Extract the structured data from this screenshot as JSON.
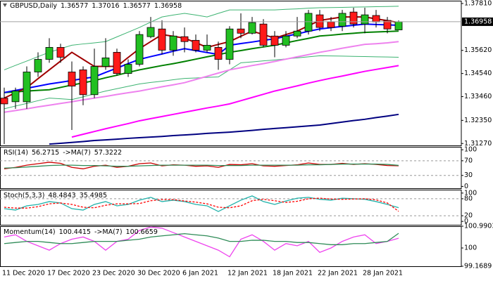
{
  "chart_data": [
    {
      "type": "candlestick",
      "title": "GBPUSD,Daily",
      "categories": [
        "11 Dec 2020",
        null,
        null,
        null,
        "17 Dec 2020",
        null,
        null,
        null,
        "23 Dec 2020",
        null,
        null,
        null,
        "30 Dec 2020",
        null,
        null,
        null,
        "6 Jan 2021",
        null,
        null,
        null,
        "12 Jan 2021",
        null,
        null,
        null,
        "18 Jan 2021",
        null,
        null,
        null,
        "22 Jan 2021",
        null,
        null,
        null,
        "28 Jan 2021",
        null,
        null,
        null
      ],
      "open": [
        1.3339,
        1.3322,
        1.3322,
        1.3461,
        1.352,
        1.3576,
        1.3461,
        1.3471,
        1.3355,
        1.3487,
        1.3553,
        1.3454,
        1.3497,
        1.3626,
        1.3662,
        1.3563,
        1.3626,
        1.3609,
        1.3563,
        1.3576,
        1.352,
        1.3662,
        1.3642,
        1.3685,
        1.3629,
        1.3586,
        1.3629,
        1.3652,
        1.3728,
        1.3695,
        1.3675,
        1.3741,
        1.3685,
        1.3725,
        1.3702,
        1.36577
      ],
      "high": [
        1.3388,
        1.3388,
        1.3487,
        1.3553,
        1.3619,
        1.3593,
        1.351,
        1.3487,
        1.357,
        1.3619,
        1.357,
        1.352,
        1.3652,
        1.3718,
        1.3702,
        1.3652,
        1.3669,
        1.3636,
        1.3636,
        1.3603,
        1.3675,
        1.3735,
        1.3718,
        1.3708,
        1.3652,
        1.3652,
        1.3718,
        1.3751,
        1.3751,
        1.3718,
        1.3751,
        1.3761,
        1.3761,
        1.3751,
        1.3718,
        1.37016
      ],
      "low": [
        1.3124,
        1.3289,
        1.3289,
        1.3438,
        1.3504,
        1.3504,
        1.319,
        1.3306,
        1.3339,
        1.3471,
        1.3444,
        1.3438,
        1.3487,
        1.3619,
        1.3543,
        1.3537,
        1.3553,
        1.3553,
        1.3553,
        1.3471,
        1.3497,
        1.3619,
        1.3636,
        1.3576,
        1.353,
        1.3576,
        1.3619,
        1.3636,
        1.3652,
        1.3652,
        1.3652,
        1.3669,
        1.3642,
        1.3669,
        1.3642,
        1.36577
      ],
      "close": [
        1.3312,
        1.3372,
        1.3461,
        1.352,
        1.3576,
        1.353,
        1.3395,
        1.3355,
        1.3487,
        1.3527,
        1.3454,
        1.3497,
        1.3636,
        1.3669,
        1.3563,
        1.3629,
        1.3603,
        1.3563,
        1.3586,
        1.352,
        1.3662,
        1.3642,
        1.3692,
        1.3586,
        1.3586,
        1.3629,
        1.3652,
        1.3735,
        1.3669,
        1.3669,
        1.3735,
        1.3685,
        1.3728,
        1.3695,
        1.3662,
        1.36958
      ],
      "up_color": "#22c022",
      "down_color": "#ff1a1a",
      "overlays": [
        {
          "color": "#3cb371",
          "width": 1,
          "values": [
            1.3471,
            1.3492,
            1.3512,
            1.3533,
            1.3553,
            1.357,
            1.3586,
            1.3592,
            1.3597,
            1.3603,
            1.3625,
            1.3647,
            1.3669,
            1.3694,
            1.3718,
            1.3727,
            1.3735,
            1.3727,
            1.3718,
            1.3735,
            1.3751,
            1.3751,
            1.3751,
            1.3751,
            1.3751,
            1.3754,
            1.3756,
            1.3759,
            1.3761,
            1.3762,
            1.3763,
            1.3764,
            1.3765,
            1.3766,
            1.3767,
            1.3768
          ]
        },
        {
          "color": "#3cb371",
          "width": 1,
          "values": [
            1.3289,
            1.3302,
            1.3314,
            1.3327,
            1.3339,
            1.3336,
            1.3332,
            1.3345,
            1.3359,
            1.3372,
            1.3383,
            1.3394,
            1.3405,
            1.3412,
            1.3418,
            1.3425,
            1.3431,
            1.3433,
            1.3436,
            1.3438,
            1.3471,
            1.3504,
            1.3508,
            1.3513,
            1.3517,
            1.3522,
            1.3527,
            1.3532,
            1.3537,
            1.3536,
            1.3535,
            1.3534,
            1.3533,
            1.3532,
            1.3531,
            1.353
          ]
        },
        {
          "color": "#000080",
          "width": 2,
          "values": [
            null,
            null,
            null,
            null,
            1.3124,
            1.3128,
            1.3132,
            1.3136,
            1.3141,
            1.3144,
            1.3147,
            1.3151,
            1.3154,
            1.3157,
            1.316,
            1.3164,
            1.3167,
            1.317,
            1.3174,
            1.3177,
            1.318,
            1.3184,
            1.3188,
            1.3193,
            1.3197,
            1.3201,
            1.3205,
            1.3209,
            1.3213,
            1.322,
            1.3227,
            1.3234,
            1.324,
            1.3248,
            1.3255,
            1.3263
          ]
        },
        {
          "color": "#ff00ff",
          "width": 2,
          "values": [
            null,
            null,
            null,
            null,
            null,
            null,
            1.3157,
            1.317,
            1.3183,
            1.3196,
            1.3208,
            1.322,
            1.3233,
            1.3243,
            1.3253,
            1.3263,
            1.3273,
            1.3283,
            1.3293,
            1.3302,
            1.3312,
            1.3327,
            1.3342,
            1.3357,
            1.3372,
            1.3384,
            1.3396,
            1.3409,
            1.3421,
            1.3432,
            1.3442,
            1.3453,
            1.3464,
            1.3473,
            1.3482,
            1.3491
          ]
        },
        {
          "color": "#ee82ee",
          "width": 2,
          "values": [
            1.3273,
            1.3281,
            1.3289,
            1.3298,
            1.3306,
            1.3314,
            1.3322,
            1.3331,
            1.3339,
            1.3347,
            1.3356,
            1.3364,
            1.3372,
            1.3382,
            1.3392,
            1.3401,
            1.3411,
            1.3426,
            1.3441,
            1.3456,
            1.3471,
            1.3481,
            1.3491,
            1.35,
            1.351,
            1.3521,
            1.3532,
            1.3542,
            1.3553,
            1.3562,
            1.3572,
            1.3581,
            1.359,
            1.3593,
            1.3597,
            1.3603
          ]
        },
        {
          "color": "#008000",
          "width": 2,
          "values": [
            1.3365,
            1.3368,
            1.3372,
            1.3375,
            1.3378,
            1.3389,
            1.34,
            1.341,
            1.3421,
            1.3434,
            1.3446,
            1.3459,
            1.3471,
            1.3481,
            1.3491,
            1.35,
            1.351,
            1.3521,
            1.3532,
            1.3542,
            1.3553,
            1.3561,
            1.357,
            1.3578,
            1.3586,
            1.3597,
            1.3608,
            1.3618,
            1.3629,
            1.3633,
            1.3638,
            1.3642,
            1.3646,
            1.3648,
            1.365,
            1.3652
          ]
        },
        {
          "color": "#0000ff",
          "width": 2,
          "values": [
            1.3365,
            1.3375,
            1.3385,
            1.3395,
            1.3405,
            1.3413,
            1.3421,
            1.343,
            1.3438,
            1.3459,
            1.3479,
            1.35,
            1.352,
            1.3533,
            1.3545,
            1.3558,
            1.357,
            1.3561,
            1.3552,
            1.3543,
            1.3586,
            1.3594,
            1.3601,
            1.3609,
            1.3616,
            1.3628,
            1.3639,
            1.3651,
            1.3662,
            1.3668,
            1.3674,
            1.3679,
            1.3685,
            1.3683,
            1.3681,
            1.3679
          ]
        },
        {
          "color": "#a00000",
          "width": 2,
          "values": [
            1.3339,
            1.3364,
            1.3388,
            1.343,
            1.3471,
            1.3512,
            1.3553,
            1.352,
            1.3487,
            1.3487,
            1.3487,
            1.3529,
            1.357,
            1.3603,
            1.3636,
            1.3628,
            1.3619,
            1.3598,
            1.3576,
            1.359,
            1.3603,
            1.3628,
            1.3652,
            1.3636,
            1.3619,
            1.3636,
            1.3652,
            1.3677,
            1.3702,
            1.371,
            1.3718,
            1.3718,
            1.3718,
            1.3709,
            1.3701,
            1.3692
          ]
        }
      ],
      "ylim": [
        1.3118,
        1.3794
      ],
      "yticks": [
        {
          "value": 1.3781,
          "label": "1.37810"
        },
        {
          "value": 1.3562,
          "label": "1.35620"
        },
        {
          "value": 1.3454,
          "label": "1.34540"
        },
        {
          "value": 1.3346,
          "label": "1.33460"
        },
        {
          "value": 1.3235,
          "label": "1.32350"
        },
        {
          "value": 1.3127,
          "label": "1.31270"
        }
      ]
    },
    {
      "type": "line",
      "series": [
        {
          "name": "RSI(14)",
          "color": "#cc0000",
          "values": [
            48,
            52,
            58,
            62,
            66,
            63,
            52,
            48,
            55,
            58,
            52,
            55,
            62,
            64,
            56,
            59,
            58,
            55,
            56,
            52,
            60,
            59,
            62,
            56,
            55,
            57,
            59,
            64,
            60,
            60,
            63,
            60,
            62,
            60,
            57,
            56.2715
          ]
        },
        {
          "name": "->MA(7)",
          "color": "#2e8b57",
          "values": [
            50,
            51,
            53,
            55,
            57,
            58,
            58,
            57,
            57,
            56,
            55,
            55,
            56,
            57,
            58,
            58,
            58,
            58,
            58,
            57,
            57,
            57,
            58,
            58,
            58,
            58,
            58,
            59,
            59,
            60,
            61,
            61,
            61,
            61,
            60,
            57.3222
          ]
        }
      ],
      "ylim": [
        -5,
        108
      ],
      "yticks": [
        100,
        70,
        30,
        0
      ],
      "dashed_levels": true
    },
    {
      "type": "line",
      "title": "Stoch(5,3,3)",
      "series": [
        {
          "color": "#20b2aa",
          "values": [
            45,
            40,
            55,
            60,
            70,
            65,
            45,
            40,
            60,
            70,
            55,
            60,
            75,
            85,
            70,
            75,
            70,
            60,
            55,
            35,
            55,
            75,
            90,
            70,
            60,
            72,
            82,
            85,
            78,
            75,
            82,
            80,
            78,
            70,
            60,
            48.4843
          ]
        },
        {
          "color": "#ff0000",
          "dash": true,
          "values": [
            50,
            47,
            47,
            52,
            62,
            65,
            60,
            50,
            48,
            57,
            62,
            62,
            63,
            73,
            77,
            77,
            72,
            68,
            62,
            50,
            48,
            55,
            73,
            78,
            73,
            67,
            71,
            80,
            82,
            79,
            78,
            79,
            80,
            76,
            65,
            35.4985
          ]
        }
      ],
      "ylim": [
        -12,
        112
      ],
      "yticks": [
        100,
        80,
        20,
        0
      ],
      "dashed_levels": true
    },
    {
      "type": "line",
      "series": [
        {
          "name": "Momentum(14)",
          "color": "#ee44ee",
          "values": [
            100.5,
            100.6,
            100.3,
            100.1,
            99.9,
            100.2,
            100.4,
            100.5,
            100.3,
            99.9,
            100.3,
            100.4,
            100.8,
            100.95,
            100.9,
            100.7,
            100.5,
            100.3,
            100.1,
            99.9,
            99.6,
            100.4,
            100.6,
            100.3,
            99.9,
            100.2,
            100.1,
            100.3,
            99.8,
            100.0,
            100.3,
            100.5,
            100.6,
            100.2,
            100.3,
            100.4415
          ]
        },
        {
          "name": "->MA(7)",
          "color": "#2e8b57",
          "values": [
            100.2,
            100.25,
            100.3,
            100.3,
            100.25,
            100.2,
            100.2,
            100.25,
            100.3,
            100.3,
            100.3,
            100.35,
            100.4,
            100.5,
            100.55,
            100.6,
            100.65,
            100.6,
            100.55,
            100.45,
            100.3,
            100.3,
            100.35,
            100.35,
            100.3,
            100.3,
            100.25,
            100.25,
            100.2,
            100.15,
            100.15,
            100.2,
            100.2,
            100.25,
            100.3,
            100.6659
          ]
        }
      ],
      "ylim": [
        99.1689,
        100.9903
      ],
      "yticks": [
        100.9903,
        100,
        99.1689
      ],
      "dashed_levels": false
    }
  ]
}
